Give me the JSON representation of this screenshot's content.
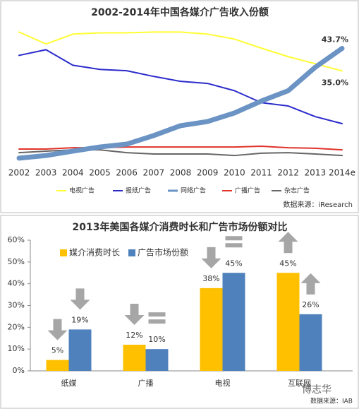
{
  "chart_data": [
    {
      "type": "line",
      "title": "2002-2014年中国各媒介广告收入份额",
      "categories": [
        "2002",
        "2003",
        "2004",
        "2005",
        "2006",
        "2007",
        "2008",
        "2009",
        "2010",
        "2011",
        "2012",
        "2013",
        "2014e"
      ],
      "ylim": [
        0,
        55
      ],
      "series": [
        {
          "name": "电视广告",
          "color": "#ffff33",
          "values": [
            50.0,
            45.4,
            49.2,
            49.7,
            49.7,
            50.0,
            50.0,
            49.2,
            47.3,
            43.8,
            40.5,
            37.8,
            35.0
          ],
          "value_labels": [
            null,
            null,
            null,
            null,
            null,
            null,
            null,
            null,
            null,
            null,
            null,
            null,
            "35.0%"
          ]
        },
        {
          "name": "报纸广告",
          "color": "#2b2bcc",
          "values": [
            41.0,
            43.2,
            37.2,
            35.6,
            35.1,
            32.9,
            31.0,
            30.2,
            27.4,
            22.8,
            21.5,
            17.4,
            14.7
          ]
        },
        {
          "name": "网络广告",
          "color": "#6b93c4",
          "values": [
            1.4,
            2.4,
            4.1,
            5.7,
            6.8,
            10.1,
            13.9,
            15.5,
            18.8,
            23.4,
            27.4,
            36.4,
            43.7
          ],
          "value_labels": [
            null,
            null,
            null,
            null,
            null,
            null,
            null,
            null,
            null,
            null,
            null,
            null,
            "43.7%"
          ]
        },
        {
          "name": "广播广告",
          "color": "#e0332b",
          "values": [
            4.9,
            4.9,
            5.4,
            5.4,
            5.7,
            5.7,
            5.7,
            5.7,
            5.7,
            6.0,
            5.4,
            5.2,
            4.6
          ]
        },
        {
          "name": "杂志广告",
          "color": "#666666",
          "values": [
            3.5,
            4.1,
            4.6,
            4.6,
            3.5,
            3.0,
            3.0,
            3.0,
            2.4,
            3.3,
            3.5,
            3.0,
            2.4
          ]
        }
      ],
      "source": "数据来源：iResearch"
    },
    {
      "type": "bar",
      "title": "2013年美国各媒介消费时长和广告市场份额对比",
      "categories": [
        "纸媒",
        "广播",
        "电视",
        "互联网"
      ],
      "ylim": [
        0,
        60
      ],
      "yticks": [
        {
          "value": 0,
          "label": "0%"
        },
        {
          "value": 10,
          "label": "10%"
        },
        {
          "value": 20,
          "label": "20%"
        },
        {
          "value": 30,
          "label": "30%"
        },
        {
          "value": 40,
          "label": "40%"
        },
        {
          "value": 50,
          "label": "50%"
        },
        {
          "value": 60,
          "label": "60%"
        }
      ],
      "series": [
        {
          "name": "媒介消费时长",
          "color": "#ffc000",
          "values": [
            5,
            12,
            38,
            45
          ],
          "value_labels": [
            "5%",
            "12%",
            "38%",
            "45%"
          ]
        },
        {
          "name": "广告市场份额",
          "color": "#4f81bd",
          "values": [
            19,
            10,
            45,
            26
          ],
          "value_labels": [
            "19%",
            "10%",
            "45%",
            "26%"
          ]
        }
      ],
      "source": "数据来源：IAB",
      "watermark": "博志华"
    }
  ]
}
